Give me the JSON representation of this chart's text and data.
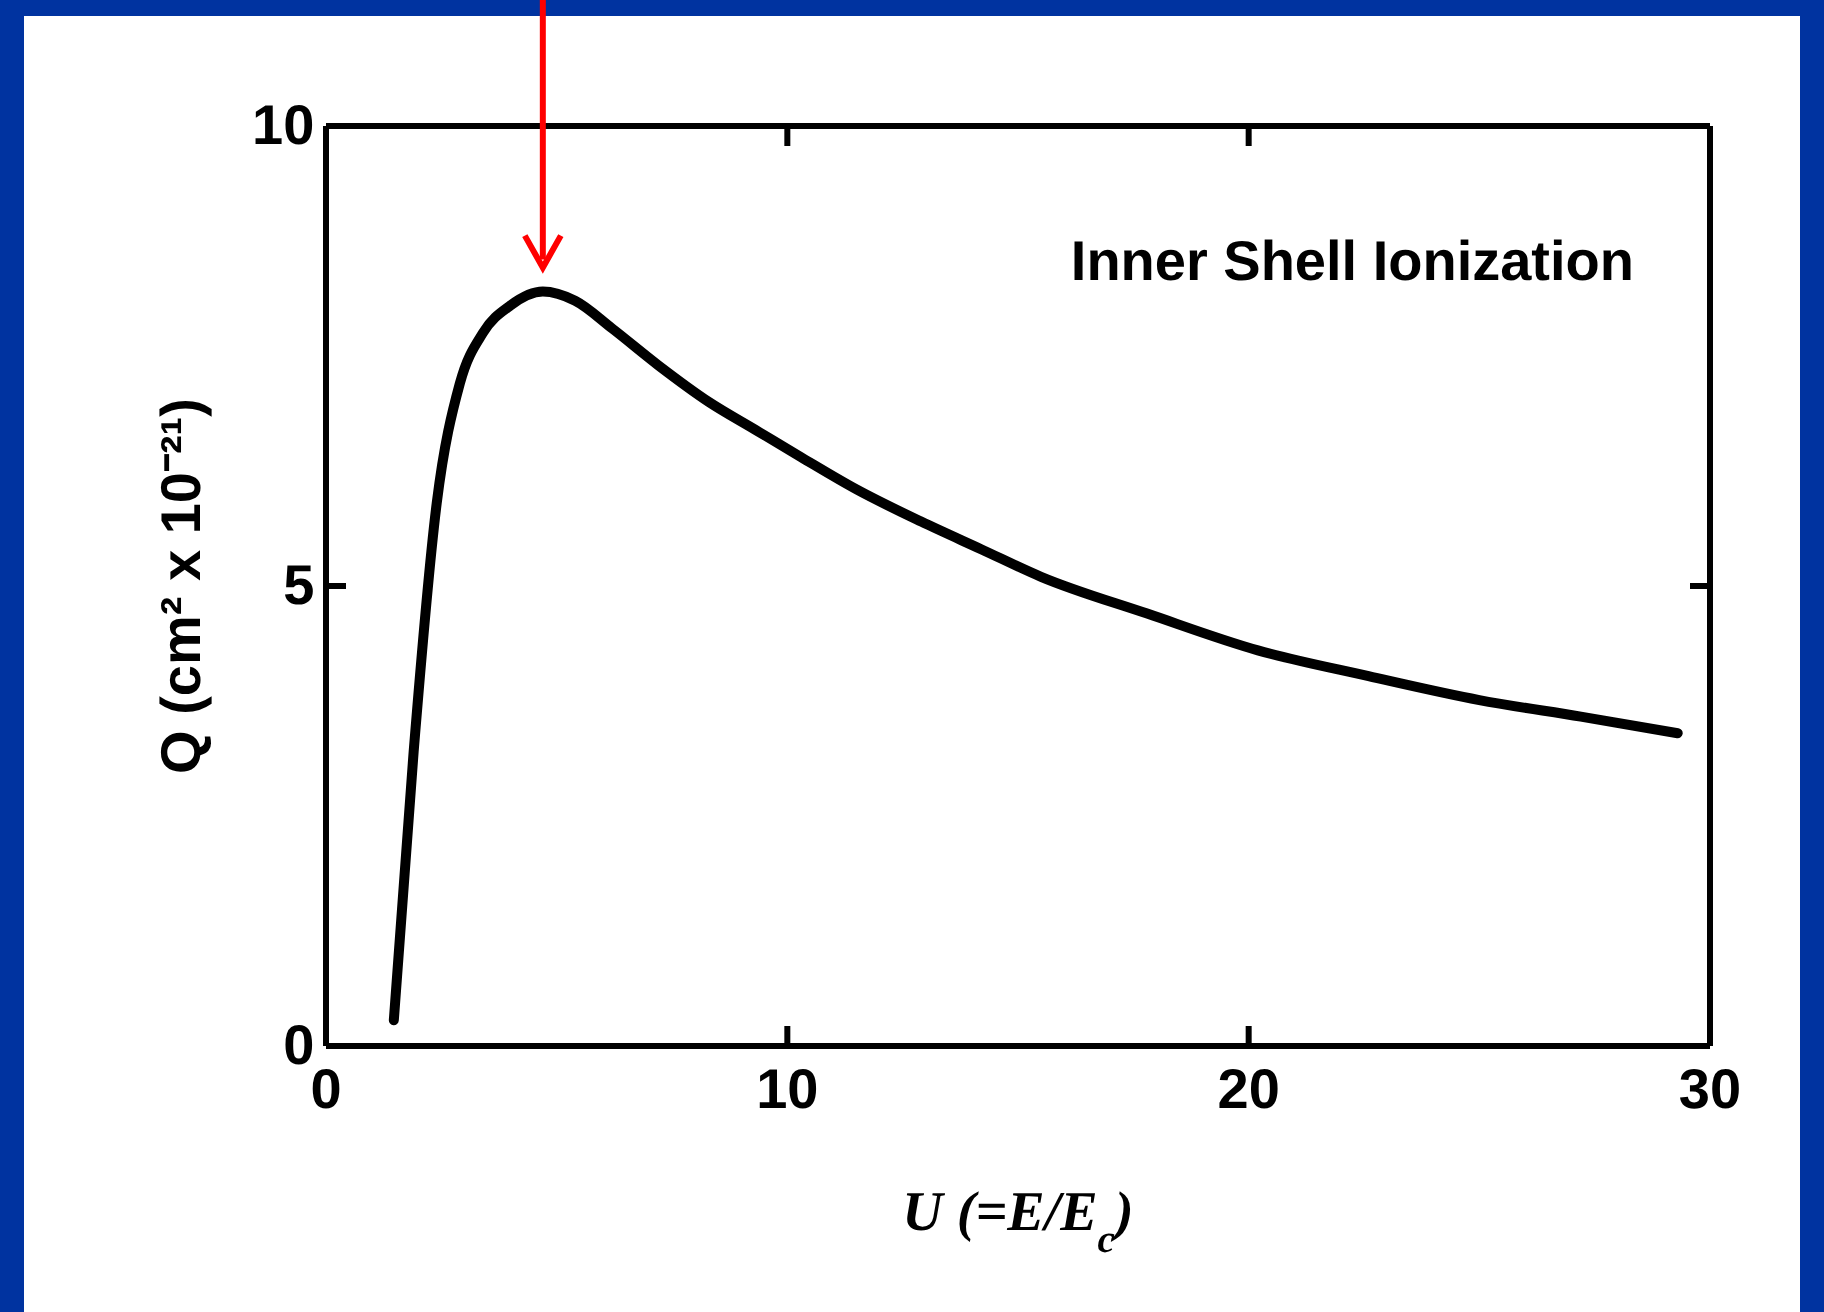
{
  "chart_data": {
    "type": "line",
    "xlabel": "U (=E/E$_{c}$)",
    "ylabel": "Q (cm² x 10⁻²¹)",
    "annotations": [
      "Inner Shell Ionization"
    ],
    "xlim": [
      0,
      30
    ],
    "xticks": [
      0,
      10,
      20,
      30
    ],
    "ylim": [
      0,
      10
    ],
    "yticks": [
      0,
      5,
      10
    ],
    "series": [
      {
        "color": "#000000",
        "x": [
          1.47,
          1.9,
          2.4,
          2.9,
          3.4,
          4.0,
          4.7,
          5.4,
          6.2,
          7.2,
          8.3,
          9.3,
          10.3,
          11.5,
          12.9,
          14.2,
          15.5,
          17.8,
          20.2,
          22.6,
          25.0,
          27.2,
          29.3
        ],
        "values": [
          0.28,
          3.2,
          5.9,
          7.2,
          7.75,
          8.05,
          8.2,
          8.1,
          7.8,
          7.4,
          7.0,
          6.7,
          6.4,
          6.05,
          5.7,
          5.4,
          5.1,
          4.7,
          4.3,
          4.02,
          3.76,
          3.58,
          3.4
        ]
      }
    ]
  }
}
